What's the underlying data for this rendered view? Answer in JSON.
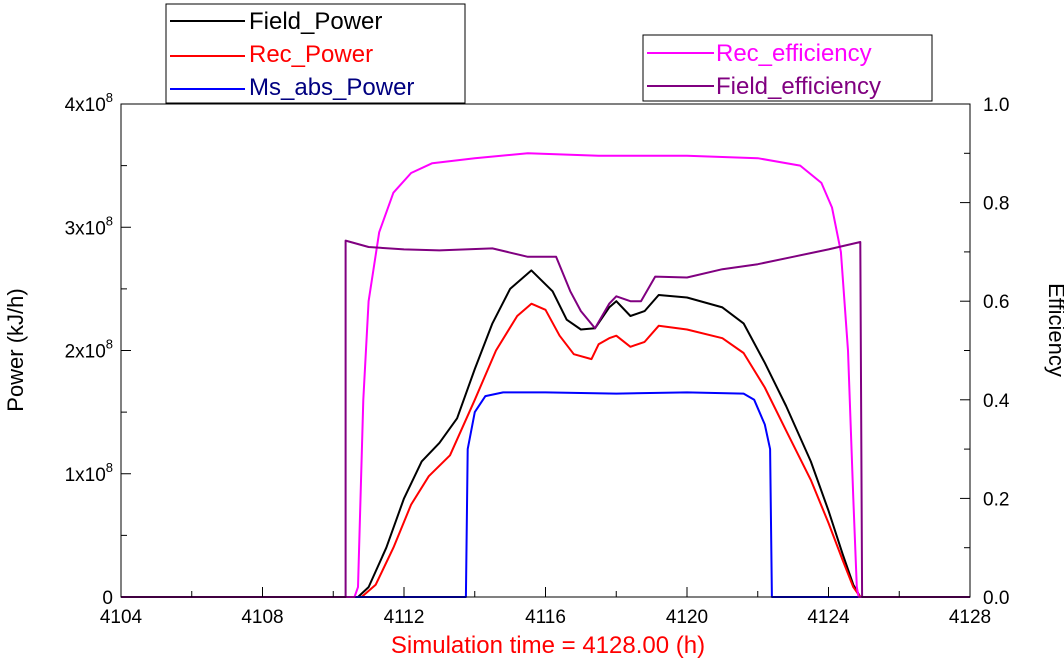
{
  "chart_data": {
    "type": "line",
    "xlabel": "Simulation time = 4128.00 (h)",
    "ylabel_left": "Power (kJ/h)",
    "ylabel_right": "Efficiency",
    "xlim": [
      4104,
      4128
    ],
    "ylim_left": [
      0,
      400000000
    ],
    "ylim_right": [
      0,
      1.0
    ],
    "x_ticks": [
      "4104",
      "4108",
      "4112",
      "4116",
      "4120",
      "4124",
      "4128"
    ],
    "y_left_ticks": [
      {
        "value": 0,
        "mant": "0",
        "exp": ""
      },
      {
        "value": 100000000,
        "mant": "1x10",
        "exp": "8"
      },
      {
        "value": 200000000,
        "mant": "2x10",
        "exp": "8"
      },
      {
        "value": 300000000,
        "mant": "3x10",
        "exp": "8"
      },
      {
        "value": 400000000,
        "mant": "4x10",
        "exp": "8"
      }
    ],
    "y_right_ticks": [
      "0.0",
      "0.2",
      "0.4",
      "0.6",
      "0.8",
      "1.0"
    ],
    "grid": false,
    "legend_left_position": "top-left",
    "legend_right_position": "top-right",
    "series": [
      {
        "name": "Field_Power",
        "axis": "left",
        "color": "#000000",
        "points": [
          [
            4104,
            0
          ],
          [
            4110.7,
            0
          ],
          [
            4111.0,
            8000000
          ],
          [
            4111.5,
            40000000
          ],
          [
            4112.0,
            80000000
          ],
          [
            4112.5,
            110000000
          ],
          [
            4113.0,
            125000000
          ],
          [
            4113.5,
            145000000
          ],
          [
            4114.0,
            185000000
          ],
          [
            4114.5,
            222000000
          ],
          [
            4115.0,
            250000000
          ],
          [
            4115.6,
            265000000
          ],
          [
            4116.2,
            248000000
          ],
          [
            4116.6,
            225000000
          ],
          [
            4117.0,
            217000000
          ],
          [
            4117.4,
            218000000
          ],
          [
            4117.8,
            235000000
          ],
          [
            4118.0,
            240000000
          ],
          [
            4118.4,
            228000000
          ],
          [
            4118.8,
            232000000
          ],
          [
            4119.2,
            245000000
          ],
          [
            4120.0,
            243000000
          ],
          [
            4121.0,
            235000000
          ],
          [
            4121.6,
            222000000
          ],
          [
            4122.2,
            190000000
          ],
          [
            4122.8,
            155000000
          ],
          [
            4123.5,
            110000000
          ],
          [
            4124.0,
            70000000
          ],
          [
            4124.4,
            35000000
          ],
          [
            4124.7,
            10000000
          ],
          [
            4124.9,
            0
          ],
          [
            4128,
            0
          ]
        ]
      },
      {
        "name": "Rec_Power",
        "axis": "left",
        "color": "#ff0000",
        "points": [
          [
            4104,
            0
          ],
          [
            4110.8,
            0
          ],
          [
            4111.2,
            10000000
          ],
          [
            4111.7,
            40000000
          ],
          [
            4112.2,
            75000000
          ],
          [
            4112.7,
            98000000
          ],
          [
            4113.3,
            115000000
          ],
          [
            4114.0,
            160000000
          ],
          [
            4114.6,
            200000000
          ],
          [
            4115.2,
            228000000
          ],
          [
            4115.6,
            238000000
          ],
          [
            4116.0,
            233000000
          ],
          [
            4116.4,
            212000000
          ],
          [
            4116.8,
            197000000
          ],
          [
            4117.3,
            193000000
          ],
          [
            4117.5,
            205000000
          ],
          [
            4117.8,
            210000000
          ],
          [
            4118.0,
            212000000
          ],
          [
            4118.4,
            203000000
          ],
          [
            4118.8,
            207000000
          ],
          [
            4119.2,
            220000000
          ],
          [
            4120.0,
            217000000
          ],
          [
            4121.0,
            210000000
          ],
          [
            4121.6,
            198000000
          ],
          [
            4122.2,
            170000000
          ],
          [
            4122.8,
            135000000
          ],
          [
            4123.5,
            95000000
          ],
          [
            4124.0,
            60000000
          ],
          [
            4124.4,
            30000000
          ],
          [
            4124.7,
            8000000
          ],
          [
            4124.9,
            0
          ],
          [
            4128,
            0
          ]
        ]
      },
      {
        "name": "Ms_abs_Power",
        "axis": "left",
        "color": "#0000ff",
        "points": [
          [
            4104,
            0
          ],
          [
            4113.75,
            0
          ],
          [
            4113.8,
            120000000
          ],
          [
            4114.0,
            150000000
          ],
          [
            4114.3,
            163000000
          ],
          [
            4114.8,
            166000000
          ],
          [
            4116.0,
            166000000
          ],
          [
            4118.0,
            165000000
          ],
          [
            4120.0,
            166000000
          ],
          [
            4121.6,
            165000000
          ],
          [
            4121.9,
            160000000
          ],
          [
            4122.2,
            140000000
          ],
          [
            4122.35,
            120000000
          ],
          [
            4122.4,
            0
          ],
          [
            4128,
            0
          ]
        ]
      },
      {
        "name": "Rec_efficiency",
        "axis": "right",
        "color": "#ff00ff",
        "points": [
          [
            4104,
            0
          ],
          [
            4110.6,
            0
          ],
          [
            4110.7,
            0.02
          ],
          [
            4110.85,
            0.4
          ],
          [
            4111.0,
            0.6
          ],
          [
            4111.3,
            0.74
          ],
          [
            4111.7,
            0.82
          ],
          [
            4112.2,
            0.86
          ],
          [
            4112.8,
            0.88
          ],
          [
            4114.0,
            0.89
          ],
          [
            4115.5,
            0.9
          ],
          [
            4117.5,
            0.895
          ],
          [
            4120,
            0.895
          ],
          [
            4122,
            0.89
          ],
          [
            4123.2,
            0.875
          ],
          [
            4123.8,
            0.84
          ],
          [
            4124.1,
            0.79
          ],
          [
            4124.35,
            0.7
          ],
          [
            4124.55,
            0.5
          ],
          [
            4124.7,
            0.2
          ],
          [
            4124.8,
            0.02
          ],
          [
            4124.85,
            0
          ],
          [
            4128,
            0
          ]
        ]
      },
      {
        "name": "Field_efficiency",
        "axis": "right",
        "color": "#800080",
        "points": [
          [
            4104,
            0
          ],
          [
            4110.35,
            0
          ],
          [
            4110.35,
            0.723
          ],
          [
            4111,
            0.71
          ],
          [
            4112,
            0.705
          ],
          [
            4113,
            0.703
          ],
          [
            4114.5,
            0.707
          ],
          [
            4115.5,
            0.69
          ],
          [
            4116.3,
            0.69
          ],
          [
            4116.7,
            0.62
          ],
          [
            4117.0,
            0.58
          ],
          [
            4117.4,
            0.545
          ],
          [
            4117.8,
            0.595
          ],
          [
            4118.0,
            0.61
          ],
          [
            4118.4,
            0.6
          ],
          [
            4118.7,
            0.6
          ],
          [
            4119.1,
            0.65
          ],
          [
            4120,
            0.648
          ],
          [
            4121,
            0.665
          ],
          [
            4122,
            0.675
          ],
          [
            4123,
            0.69
          ],
          [
            4124,
            0.705
          ],
          [
            4124.9,
            0.72
          ],
          [
            4124.95,
            0
          ],
          [
            4128,
            0
          ]
        ]
      }
    ]
  }
}
